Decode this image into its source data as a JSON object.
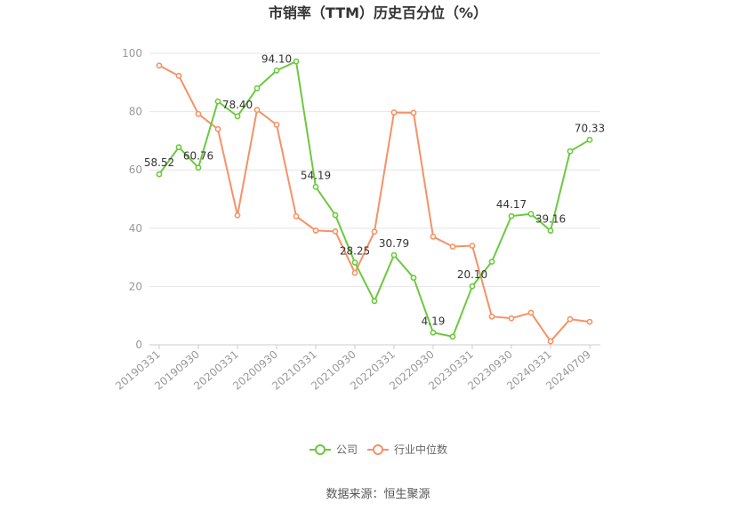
{
  "chart_data": {
    "type": "line",
    "title": "市销率（TTM）历史百分位（%）",
    "x": [
      "20190331",
      "20190630",
      "20190930",
      "20191231",
      "20200331",
      "20200630",
      "20200930",
      "20201231",
      "20210331",
      "20210630",
      "20210930",
      "20211231",
      "20220331",
      "20220630",
      "20220930",
      "20221231",
      "20230331",
      "20230630",
      "20230930",
      "20231231",
      "20240331",
      "20240630",
      "20240709"
    ],
    "x_tick_labels": [
      "20190331",
      "20190930",
      "20200331",
      "20200930",
      "20210331",
      "20210930",
      "20220331",
      "20220930",
      "20230331",
      "20230930",
      "20240331",
      "20240709"
    ],
    "ylim": [
      0,
      100
    ],
    "y_ticks": [
      0,
      20,
      40,
      60,
      80,
      100
    ],
    "grid": true,
    "legend_position": "bottom",
    "series": [
      {
        "name": "公司",
        "color": "#6cc93f",
        "values": [
          58.52,
          67.8,
          60.76,
          83.5,
          78.4,
          88.0,
          94.1,
          97.2,
          54.19,
          44.5,
          28.25,
          15.0,
          30.79,
          23.0,
          4.19,
          2.8,
          20.1,
          28.5,
          44.17,
          44.9,
          39.16,
          66.4,
          70.33
        ],
        "labels": [
          "58.52",
          null,
          "60.76",
          null,
          "78.40",
          null,
          "94.10",
          null,
          "54.19",
          null,
          "28.25",
          null,
          "30.79",
          null,
          "4.19",
          null,
          "20.10",
          null,
          "44.17",
          null,
          "39.16",
          null,
          "70.33"
        ]
      },
      {
        "name": "行业中位数",
        "color": "#f59266",
        "values": [
          95.8,
          92.3,
          79.2,
          74.0,
          44.4,
          80.6,
          75.5,
          44.1,
          39.2,
          38.9,
          24.7,
          38.8,
          79.7,
          79.6,
          37.1,
          33.7,
          34.0,
          9.7,
          9.1,
          11.0,
          1.2,
          8.8,
          7.9
        ]
      }
    ]
  },
  "source_text": "数据来源：恒生聚源"
}
